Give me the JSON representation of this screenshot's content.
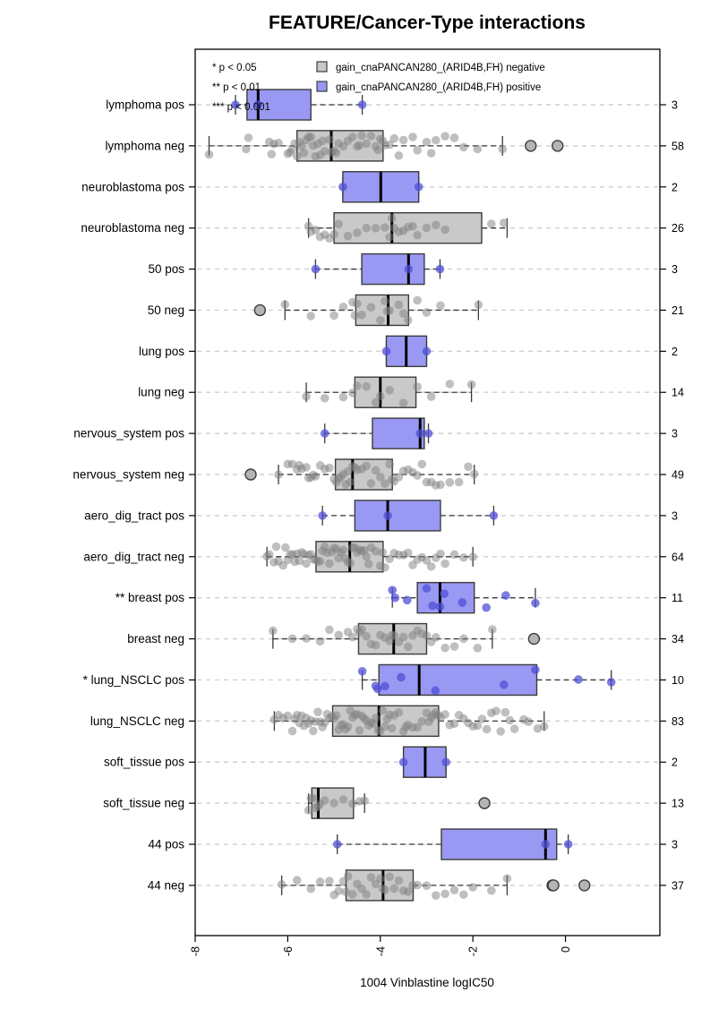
{
  "title": "FEATURE/Cancer-Type interactions",
  "legend": {
    "significance": [
      "* p < 0.05",
      "** p < 0.01",
      "*** p < 0.001"
    ],
    "entries": [
      {
        "label": "gain_cnaPANCAN280_(ARID4B,FH) negative",
        "color": "#c9c9c9"
      },
      {
        "label": "gain_cnaPANCAN280_(ARID4B,FH) positive",
        "color": "#9999f3"
      }
    ]
  },
  "colors": {
    "box_positive": "#9999f3",
    "box_negative": "#c9c9c9",
    "box_stroke": "#3c3c3c",
    "point_positive": "rgba(80,80,215,0.75)",
    "point_negative": "rgba(128,128,128,0.5)",
    "outlier_fill": "#b4b4b4",
    "outlier_stroke": "#3c3c3c",
    "grid": "#cfcfcf",
    "whisker": "#3a3a3a",
    "median": "#000000"
  },
  "chart_data": {
    "type": "boxplot",
    "orientation": "horizontal",
    "title": "FEATURE/Cancer-Type interactions",
    "xlabel": "1004 Vinblastine logIC50",
    "x_ticks": [
      -8,
      -6,
      -4,
      -2,
      0
    ],
    "xlim": [
      -8.0,
      2.04
    ],
    "grid": "dashed-horizontal",
    "legend_position": "top-left-inside",
    "rows": [
      {
        "label": "lymphoma pos",
        "group": "positive",
        "n": 3,
        "box": {
          "lo": -7.13,
          "q1": -6.88,
          "med": -6.64,
          "q3": -5.5,
          "hi": -4.39
        },
        "points": [
          -7.13,
          -6.64,
          -4.39
        ],
        "outliers": []
      },
      {
        "label": "lymphoma neg",
        "group": "negative",
        "n": 58,
        "box": {
          "lo": -7.7,
          "q1": -5.8,
          "med": -5.06,
          "q3": -3.94,
          "hi": -1.36
        },
        "points": [
          -7.7,
          -6.9,
          -6.85,
          -6.4,
          -6.35,
          -6.3,
          -6.2,
          -6.0,
          -5.95,
          -5.9,
          -5.85,
          -5.8,
          -5.75,
          -5.7,
          -5.65,
          -5.6,
          -5.55,
          -5.5,
          -5.45,
          -5.4,
          -5.35,
          -5.3,
          -5.25,
          -5.2,
          -5.1,
          -5.05,
          -5.0,
          -4.95,
          -4.9,
          -4.8,
          -4.7,
          -4.6,
          -4.5,
          -4.45,
          -4.4,
          -4.3,
          -4.2,
          -4.1,
          -4.05,
          -4.0,
          -3.95,
          -3.9,
          -3.8,
          -3.7,
          -3.6,
          -3.5,
          -3.3,
          -3.2,
          -3.0,
          -2.9,
          -2.8,
          -2.6,
          -2.4,
          -2.2,
          -1.9,
          -1.36
        ],
        "outliers": [
          -0.75,
          -0.17
        ]
      },
      {
        "label": "neuroblastoma pos",
        "group": "positive",
        "n": 2,
        "box": {
          "lo": -4.81,
          "q1": -4.81,
          "med": -3.99,
          "q3": -3.17,
          "hi": -3.17
        },
        "points": [
          -4.81,
          -3.17
        ],
        "outliers": []
      },
      {
        "label": "neuroblastoma neg",
        "group": "negative",
        "n": 26,
        "box": {
          "lo": -5.55,
          "q1": -5.0,
          "med": -3.75,
          "q3": -1.81,
          "hi": -1.26
        },
        "points": [
          -5.55,
          -5.5,
          -5.4,
          -5.3,
          -5.2,
          -5.1,
          -5.0,
          -4.9,
          -4.7,
          -4.5,
          -4.3,
          -4.1,
          -3.9,
          -3.8,
          -3.75,
          -3.7,
          -3.6,
          -3.5,
          -3.4,
          -3.3,
          -3.2,
          -3.0,
          -2.8,
          -2.6,
          -1.6,
          -1.33
        ],
        "outliers": []
      },
      {
        "label": "50 pos",
        "group": "positive",
        "n": 3,
        "box": {
          "lo": -5.4,
          "q1": -4.4,
          "med": -3.39,
          "q3": -3.05,
          "hi": -2.71
        },
        "points": [
          -5.4,
          -3.39,
          -2.71
        ],
        "outliers": []
      },
      {
        "label": "50 neg",
        "group": "negative",
        "n": 21,
        "box": {
          "lo": -6.06,
          "q1": -4.53,
          "med": -3.83,
          "q3": -3.39,
          "hi": -1.88
        },
        "points": [
          -6.06,
          -5.5,
          -5.0,
          -4.8,
          -4.6,
          -4.55,
          -4.5,
          -4.4,
          -4.2,
          -4.0,
          -3.9,
          -3.85,
          -3.8,
          -3.6,
          -3.5,
          -3.4,
          -3.2,
          -3.0,
          -2.7,
          -1.88
        ],
        "outliers": [
          -6.6
        ]
      },
      {
        "label": "lung pos",
        "group": "positive",
        "n": 2,
        "box": {
          "lo": -3.87,
          "q1": -3.87,
          "med": -3.44,
          "q3": -3.0,
          "hi": -3.0
        },
        "points": [
          -3.87,
          -3.0
        ],
        "outliers": []
      },
      {
        "label": "lung neg",
        "group": "negative",
        "n": 14,
        "box": {
          "lo": -5.6,
          "q1": -4.55,
          "med": -4.0,
          "q3": -3.23,
          "hi": -2.03
        },
        "points": [
          -5.6,
          -5.2,
          -4.8,
          -4.6,
          -4.5,
          -4.3,
          -4.1,
          -4.0,
          -3.8,
          -3.5,
          -3.2,
          -2.9,
          -2.5,
          -2.03
        ],
        "outliers": []
      },
      {
        "label": "nervous_system pos",
        "group": "positive",
        "n": 3,
        "box": {
          "lo": -5.2,
          "q1": -4.17,
          "med": -3.14,
          "q3": -3.05,
          "hi": -2.96
        },
        "points": [
          -5.2,
          -3.14,
          -2.96
        ],
        "outliers": []
      },
      {
        "label": "nervous_system neg",
        "group": "negative",
        "n": 49,
        "box": {
          "lo": -6.2,
          "q1": -4.97,
          "med": -4.6,
          "q3": -3.74,
          "hi": -1.97
        },
        "points": [
          -6.2,
          -6.0,
          -5.9,
          -5.8,
          -5.75,
          -5.7,
          -5.6,
          -5.55,
          -5.5,
          -5.45,
          -5.4,
          -5.3,
          -5.2,
          -5.1,
          -5.0,
          -4.95,
          -4.9,
          -4.85,
          -4.8,
          -4.75,
          -4.7,
          -4.65,
          -4.6,
          -4.55,
          -4.5,
          -4.4,
          -4.3,
          -4.2,
          -4.1,
          -4.0,
          -3.9,
          -3.8,
          -3.75,
          -3.7,
          -3.6,
          -3.5,
          -3.4,
          -3.3,
          -3.2,
          -3.1,
          -3.0,
          -2.9,
          -2.8,
          -2.7,
          -2.5,
          -2.3,
          -2.1,
          -1.97
        ],
        "outliers": [
          -6.8
        ]
      },
      {
        "label": "aero_dig_tract pos",
        "group": "positive",
        "n": 3,
        "box": {
          "lo": -5.25,
          "q1": -4.55,
          "med": -3.84,
          "q3": -2.7,
          "hi": -1.55
        },
        "points": [
          -5.25,
          -3.84,
          -1.55
        ],
        "outliers": []
      },
      {
        "label": "aero_dig_tract neg",
        "group": "negative",
        "n": 64,
        "box": {
          "lo": -6.45,
          "q1": -5.39,
          "med": -4.66,
          "q3": -3.94,
          "hi": -2.0
        },
        "points": [
          -6.45,
          -6.4,
          -6.3,
          -6.25,
          -6.2,
          -6.1,
          -6.05,
          -6.0,
          -5.95,
          -5.9,
          -5.85,
          -5.8,
          -5.75,
          -5.7,
          -5.65,
          -5.6,
          -5.55,
          -5.5,
          -5.45,
          -5.4,
          -5.35,
          -5.3,
          -5.25,
          -5.2,
          -5.15,
          -5.1,
          -5.05,
          -5.0,
          -4.95,
          -4.9,
          -4.85,
          -4.8,
          -4.75,
          -4.7,
          -4.65,
          -4.6,
          -4.55,
          -4.5,
          -4.45,
          -4.4,
          -4.35,
          -4.3,
          -4.25,
          -4.2,
          -4.1,
          -4.0,
          -3.95,
          -3.9,
          -3.8,
          -3.7,
          -3.6,
          -3.5,
          -3.4,
          -3.3,
          -3.2,
          -3.1,
          -3.0,
          -2.9,
          -2.8,
          -2.7,
          -2.6,
          -2.4,
          -2.2,
          -2.0
        ],
        "outliers": []
      },
      {
        "label": "** breast pos",
        "group": "positive",
        "n": 11,
        "box": {
          "lo": -3.74,
          "q1": -3.2,
          "med": -2.71,
          "q3": -1.97,
          "hi": -0.65
        },
        "points": [
          -3.74,
          -3.68,
          -3.42,
          -3.0,
          -2.87,
          -2.71,
          -2.62,
          -2.23,
          -1.71,
          -1.29,
          -0.65
        ],
        "outliers": []
      },
      {
        "label": "breast neg",
        "group": "negative",
        "n": 34,
        "box": {
          "lo": -6.32,
          "q1": -4.47,
          "med": -3.71,
          "q3": -3.0,
          "hi": -1.58
        },
        "points": [
          -6.32,
          -5.9,
          -5.6,
          -5.3,
          -5.1,
          -4.9,
          -4.7,
          -4.6,
          -4.5,
          -4.45,
          -4.4,
          -4.3,
          -4.2,
          -4.1,
          -4.0,
          -3.9,
          -3.8,
          -3.75,
          -3.7,
          -3.6,
          -3.5,
          -3.4,
          -3.3,
          -3.2,
          -3.1,
          -3.0,
          -2.9,
          -2.8,
          -2.6,
          -2.4,
          -2.2,
          -1.9,
          -1.58
        ],
        "outliers": [
          -0.68
        ]
      },
      {
        "label": "* lung_NSCLC pos",
        "group": "positive",
        "n": 10,
        "box": {
          "lo": -4.39,
          "q1": -4.03,
          "med": -3.16,
          "q3": -0.62,
          "hi": 0.99
        },
        "points": [
          -4.39,
          -4.1,
          -4.06,
          -3.9,
          -3.55,
          -2.81,
          -1.33,
          -0.65,
          0.28,
          0.99
        ],
        "outliers": []
      },
      {
        "label": "lung_NSCLC neg",
        "group": "negative",
        "n": 83,
        "box": {
          "lo": -6.29,
          "q1": -5.03,
          "med": -4.03,
          "q3": -2.74,
          "hi": -0.46
        },
        "points": [
          -6.29,
          -6.2,
          -6.1,
          -6.0,
          -5.9,
          -5.85,
          -5.8,
          -5.75,
          -5.7,
          -5.65,
          -5.6,
          -5.55,
          -5.5,
          -5.45,
          -5.4,
          -5.35,
          -5.3,
          -5.25,
          -5.2,
          -5.15,
          -5.1,
          -5.05,
          -5.0,
          -4.95,
          -4.9,
          -4.85,
          -4.8,
          -4.75,
          -4.7,
          -4.65,
          -4.6,
          -4.55,
          -4.5,
          -4.45,
          -4.4,
          -4.35,
          -4.3,
          -4.25,
          -4.2,
          -4.15,
          -4.1,
          -4.05,
          -4.0,
          -3.95,
          -3.9,
          -3.85,
          -3.8,
          -3.75,
          -3.7,
          -3.6,
          -3.5,
          -3.45,
          -3.4,
          -3.3,
          -3.2,
          -3.1,
          -3.0,
          -2.95,
          -2.9,
          -2.85,
          -2.8,
          -2.75,
          -2.7,
          -2.6,
          -2.5,
          -2.4,
          -2.3,
          -2.2,
          -2.1,
          -2.0,
          -1.9,
          -1.8,
          -1.7,
          -1.6,
          -1.5,
          -1.4,
          -1.3,
          -1.2,
          -1.1,
          -0.9,
          -0.8,
          -0.6,
          -0.46
        ],
        "outliers": []
      },
      {
        "label": "soft_tissue pos",
        "group": "positive",
        "n": 2,
        "box": {
          "lo": -3.5,
          "q1": -3.5,
          "med": -3.03,
          "q3": -2.58,
          "hi": -2.58
        },
        "points": [
          -3.5,
          -2.58
        ],
        "outliers": []
      },
      {
        "label": "soft_tissue neg",
        "group": "negative",
        "n": 13,
        "box": {
          "lo": -5.55,
          "q1": -5.48,
          "med": -5.34,
          "q3": -4.58,
          "hi": -4.34
        },
        "points": [
          -5.55,
          -5.5,
          -5.45,
          -5.4,
          -5.35,
          -5.3,
          -5.2,
          -5.0,
          -4.8,
          -4.6,
          -4.45,
          -4.34
        ],
        "outliers": [
          -1.75
        ]
      },
      {
        "label": "44 pos",
        "group": "positive",
        "n": 3,
        "box": {
          "lo": -4.93,
          "q1": -2.68,
          "med": -0.43,
          "q3": -0.19,
          "hi": 0.06
        },
        "points": [
          -4.93,
          -0.43,
          0.06
        ],
        "outliers": []
      },
      {
        "label": "44 neg",
        "group": "negative",
        "n": 37,
        "box": {
          "lo": -6.13,
          "q1": -4.74,
          "med": -3.94,
          "q3": -3.29,
          "hi": -1.26
        },
        "points": [
          -6.13,
          -5.8,
          -5.5,
          -5.3,
          -5.1,
          -5.0,
          -4.9,
          -4.8,
          -4.75,
          -4.7,
          -4.6,
          -4.5,
          -4.4,
          -4.3,
          -4.2,
          -4.1,
          -4.0,
          -3.95,
          -3.9,
          -3.8,
          -3.7,
          -3.6,
          -3.5,
          -3.4,
          -3.3,
          -3.2,
          -3.0,
          -2.8,
          -2.6,
          -2.4,
          -2.2,
          -2.0,
          -1.6,
          -1.26
        ],
        "outliers": [
          -0.28,
          -0.26,
          0.41
        ]
      }
    ]
  }
}
